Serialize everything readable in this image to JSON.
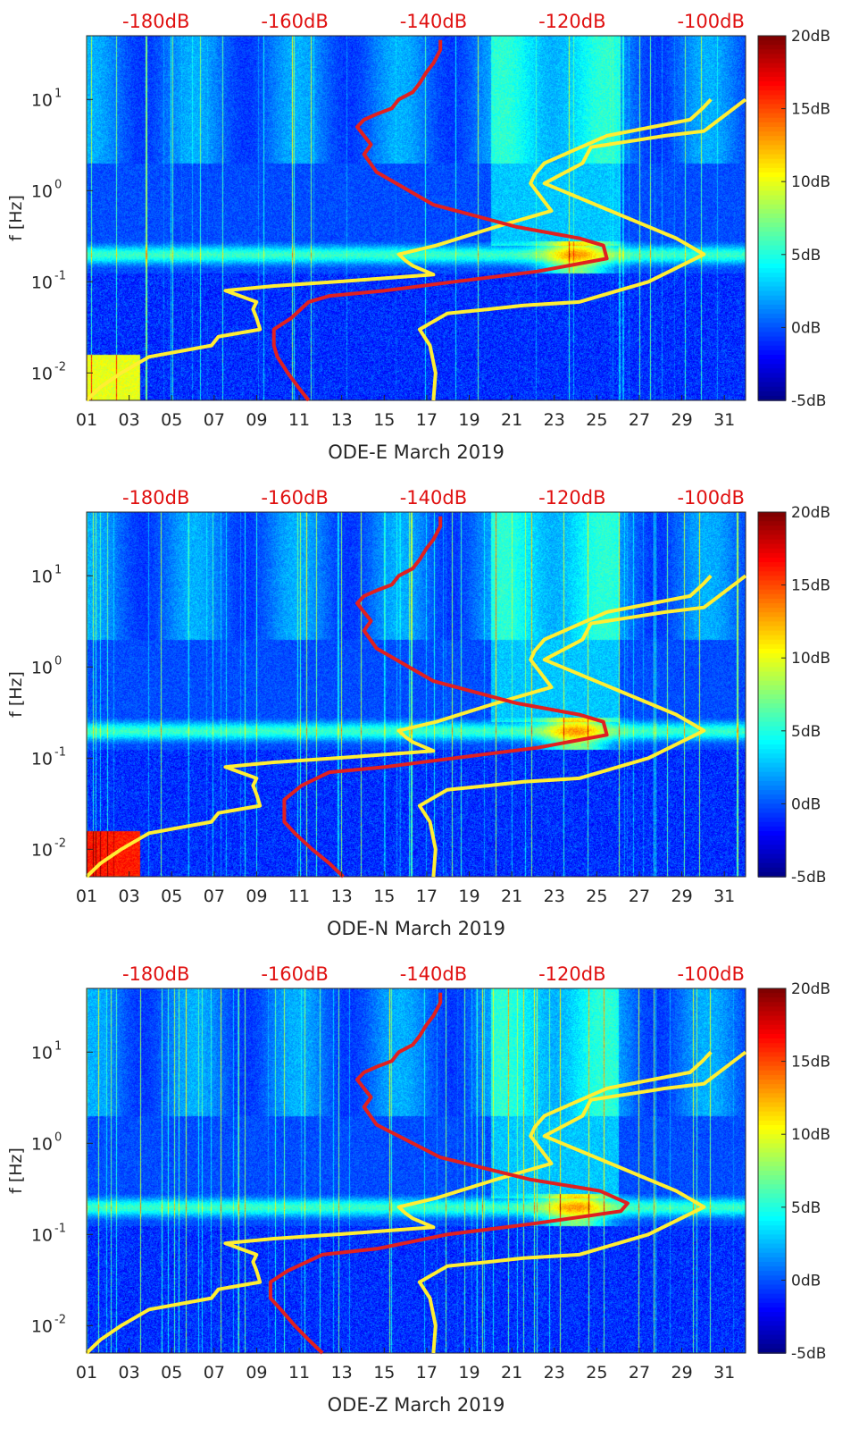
{
  "chart_data": [
    {
      "type": "heatmap",
      "xlabel": "ODE-E March 2019",
      "ylabel": "f [Hz]",
      "x_ticks": [
        "01",
        "03",
        "05",
        "07",
        "09",
        "11",
        "13",
        "15",
        "17",
        "19",
        "21",
        "23",
        "25",
        "27",
        "29",
        "31"
      ],
      "x_range_days": [
        1,
        32
      ],
      "y_scale": "log",
      "y_ticks": [
        0.01,
        0.1,
        1,
        10
      ],
      "ylim_hz": [
        0.005,
        50
      ],
      "top_ticks": [
        "-180dB",
        "-160dB",
        "-140dB",
        "-120dB",
        "-100dB"
      ],
      "top_range_db": [
        -190,
        -95
      ],
      "colorbar": {
        "range_db": [
          -5,
          20
        ],
        "ticks": [
          "20dB",
          "15dB",
          "10dB",
          "5dB",
          "0dB",
          "-5dB"
        ]
      },
      "overlays": [
        {
          "name": "",
          "color": "#ffee33",
          "x_db": [
            -190,
            -188,
            -185,
            -181,
            -172,
            -171,
            -165,
            -165.5,
            -166,
            -165.5,
            -170,
            -163,
            -154,
            -140,
            -143,
            -144,
            -145,
            -139.6,
            -131,
            -123,
            -126,
            -125.4,
            -124,
            -115,
            -103,
            -101.2,
            -100
          ],
          "y_hz": [
            0.005,
            0.007,
            0.01,
            0.015,
            0.02,
            0.025,
            0.03,
            0.04,
            0.05,
            0.06,
            0.08,
            0.09,
            0.1,
            0.12,
            0.15,
            0.17,
            0.2,
            0.25,
            0.4,
            0.6,
            1.2,
            1.5,
            2,
            4,
            6,
            8,
            10
          ]
        },
        {
          "name": "",
          "color": "#ffee33",
          "x_db": [
            -140,
            -139.7,
            -140.5,
            -142,
            -138,
            -132,
            -127,
            -119,
            -109,
            -101,
            -105,
            -114.5,
            -124,
            -118.5,
            -117.3,
            -111.5,
            -106.6,
            -101,
            -95
          ],
          "y_hz": [
            0.005,
            0.01,
            0.02,
            0.03,
            0.045,
            0.05,
            0.055,
            0.06,
            0.1,
            0.2,
            0.3,
            0.6,
            1.2,
            2,
            3,
            3.5,
            4,
            4.5,
            10
          ]
        },
        {
          "name": "",
          "color": "#e02020",
          "x_db": [
            -158,
            -159.5,
            -161,
            -162.5,
            -163,
            -163,
            -160.5,
            -158,
            -155,
            -147,
            -137,
            -125,
            -115,
            -115.5,
            -119,
            -128,
            -140,
            -148.2,
            -150,
            -149,
            -150,
            -151,
            -150,
            -148,
            -146,
            -145,
            -143,
            -142,
            -141,
            -140,
            -139,
            -139
          ],
          "y_hz": [
            0.005,
            0.007,
            0.01,
            0.015,
            0.02,
            0.03,
            0.04,
            0.06,
            0.07,
            0.08,
            0.1,
            0.13,
            0.18,
            0.25,
            0.3,
            0.4,
            0.7,
            1.6,
            2.5,
            3.2,
            4,
            5,
            6,
            7,
            8,
            10,
            12,
            15,
            20,
            25,
            35,
            45
          ]
        }
      ]
    },
    {
      "type": "heatmap",
      "xlabel": "ODE-N March 2019",
      "ylabel": "f [Hz]",
      "x_ticks": [
        "01",
        "03",
        "05",
        "07",
        "09",
        "11",
        "13",
        "15",
        "17",
        "19",
        "21",
        "23",
        "25",
        "27",
        "29",
        "31"
      ],
      "x_range_days": [
        1,
        32
      ],
      "y_scale": "log",
      "y_ticks": [
        0.01,
        0.1,
        1,
        10
      ],
      "ylim_hz": [
        0.005,
        50
      ],
      "top_ticks": [
        "-180dB",
        "-160dB",
        "-140dB",
        "-120dB",
        "-100dB"
      ],
      "top_range_db": [
        -190,
        -95
      ],
      "colorbar": {
        "range_db": [
          -5,
          20
        ],
        "ticks": [
          "20dB",
          "15dB",
          "10dB",
          "5dB",
          "0dB",
          "-5dB"
        ]
      },
      "overlays": [
        {
          "name": "",
          "color": "#ffee33",
          "x_db": [
            -190,
            -188,
            -185,
            -181,
            -172,
            -171,
            -165,
            -165.5,
            -166,
            -165.5,
            -170,
            -163,
            -154,
            -140,
            -143,
            -144,
            -145,
            -139.6,
            -131,
            -123,
            -126,
            -125.4,
            -124,
            -115,
            -103,
            -101.2,
            -100
          ],
          "y_hz": [
            0.005,
            0.007,
            0.01,
            0.015,
            0.02,
            0.025,
            0.03,
            0.04,
            0.05,
            0.06,
            0.08,
            0.09,
            0.1,
            0.12,
            0.15,
            0.17,
            0.2,
            0.25,
            0.4,
            0.6,
            1.2,
            1.5,
            2,
            4,
            6,
            8,
            10
          ]
        },
        {
          "name": "",
          "color": "#ffee33",
          "x_db": [
            -140,
            -139.7,
            -140.5,
            -142,
            -138,
            -132,
            -127,
            -119,
            -109,
            -101,
            -105,
            -114.5,
            -124,
            -118.5,
            -117.3,
            -111.5,
            -106.6,
            -101,
            -95
          ],
          "y_hz": [
            0.005,
            0.01,
            0.02,
            0.03,
            0.045,
            0.05,
            0.055,
            0.06,
            0.1,
            0.2,
            0.3,
            0.6,
            1.2,
            2,
            3,
            3.5,
            4,
            4.5,
            10
          ]
        },
        {
          "name": "",
          "color": "#e02020",
          "x_db": [
            -153,
            -155,
            -157.5,
            -160,
            -161.5,
            -161.5,
            -159,
            -155,
            -147,
            -137,
            -125,
            -115,
            -115.5,
            -119,
            -128,
            -140,
            -148.2,
            -150,
            -149,
            -150,
            -151,
            -150,
            -148,
            -146,
            -145,
            -143,
            -142,
            -141,
            -140,
            -139,
            -139
          ],
          "y_hz": [
            0.005,
            0.007,
            0.01,
            0.015,
            0.02,
            0.035,
            0.05,
            0.07,
            0.08,
            0.1,
            0.13,
            0.18,
            0.25,
            0.3,
            0.4,
            0.7,
            1.6,
            2.5,
            3.2,
            4,
            5,
            6,
            7,
            8,
            10,
            12,
            15,
            20,
            25,
            35,
            45
          ]
        }
      ]
    },
    {
      "type": "heatmap",
      "xlabel": "ODE-Z March 2019",
      "ylabel": "f [Hz]",
      "x_ticks": [
        "01",
        "03",
        "05",
        "07",
        "09",
        "11",
        "13",
        "15",
        "17",
        "19",
        "21",
        "23",
        "25",
        "27",
        "29",
        "31"
      ],
      "x_range_days": [
        1,
        32
      ],
      "y_scale": "log",
      "y_ticks": [
        0.01,
        0.1,
        1,
        10
      ],
      "ylim_hz": [
        0.005,
        50
      ],
      "top_ticks": [
        "-180dB",
        "-160dB",
        "-140dB",
        "-120dB",
        "-100dB"
      ],
      "top_range_db": [
        -190,
        -95
      ],
      "colorbar": {
        "range_db": [
          -5,
          20
        ],
        "ticks": [
          "20dB",
          "15dB",
          "10dB",
          "5dB",
          "0dB",
          "-5dB"
        ]
      },
      "overlays": [
        {
          "name": "",
          "color": "#ffee33",
          "x_db": [
            -190,
            -188,
            -185,
            -181,
            -172,
            -171,
            -165,
            -165.5,
            -166,
            -165.5,
            -170,
            -163,
            -154,
            -140,
            -143,
            -144,
            -145,
            -139.6,
            -131,
            -123,
            -126,
            -125.4,
            -124,
            -115,
            -103,
            -101.2,
            -100
          ],
          "y_hz": [
            0.005,
            0.007,
            0.01,
            0.015,
            0.02,
            0.025,
            0.03,
            0.04,
            0.05,
            0.06,
            0.08,
            0.09,
            0.1,
            0.12,
            0.15,
            0.17,
            0.2,
            0.25,
            0.4,
            0.6,
            1.2,
            1.5,
            2,
            4,
            6,
            8,
            10
          ]
        },
        {
          "name": "",
          "color": "#ffee33",
          "x_db": [
            -140,
            -139.7,
            -140.5,
            -142,
            -138,
            -132,
            -127,
            -119,
            -109,
            -101,
            -105,
            -114.5,
            -124,
            -118.5,
            -117.3,
            -111.5,
            -106.6,
            -101,
            -95
          ],
          "y_hz": [
            0.005,
            0.01,
            0.02,
            0.03,
            0.045,
            0.05,
            0.055,
            0.06,
            0.1,
            0.2,
            0.3,
            0.6,
            1.2,
            2,
            3,
            3.5,
            4,
            4.5,
            10
          ]
        },
        {
          "name": "",
          "color": "#e02020",
          "x_db": [
            -156,
            -158,
            -160,
            -162,
            -163.5,
            -163.5,
            -161,
            -156,
            -148,
            -138,
            -126,
            -113,
            -112,
            -116,
            -126,
            -139,
            -148.2,
            -150,
            -149,
            -150,
            -151,
            -150,
            -148,
            -146,
            -145,
            -143,
            -142,
            -141,
            -140,
            -139,
            -139
          ],
          "y_hz": [
            0.005,
            0.007,
            0.01,
            0.015,
            0.02,
            0.03,
            0.04,
            0.06,
            0.07,
            0.1,
            0.13,
            0.18,
            0.22,
            0.3,
            0.4,
            0.7,
            1.6,
            2.5,
            3.2,
            4,
            5,
            6,
            7,
            8,
            10,
            12,
            15,
            20,
            25,
            35,
            45
          ]
        }
      ]
    }
  ]
}
